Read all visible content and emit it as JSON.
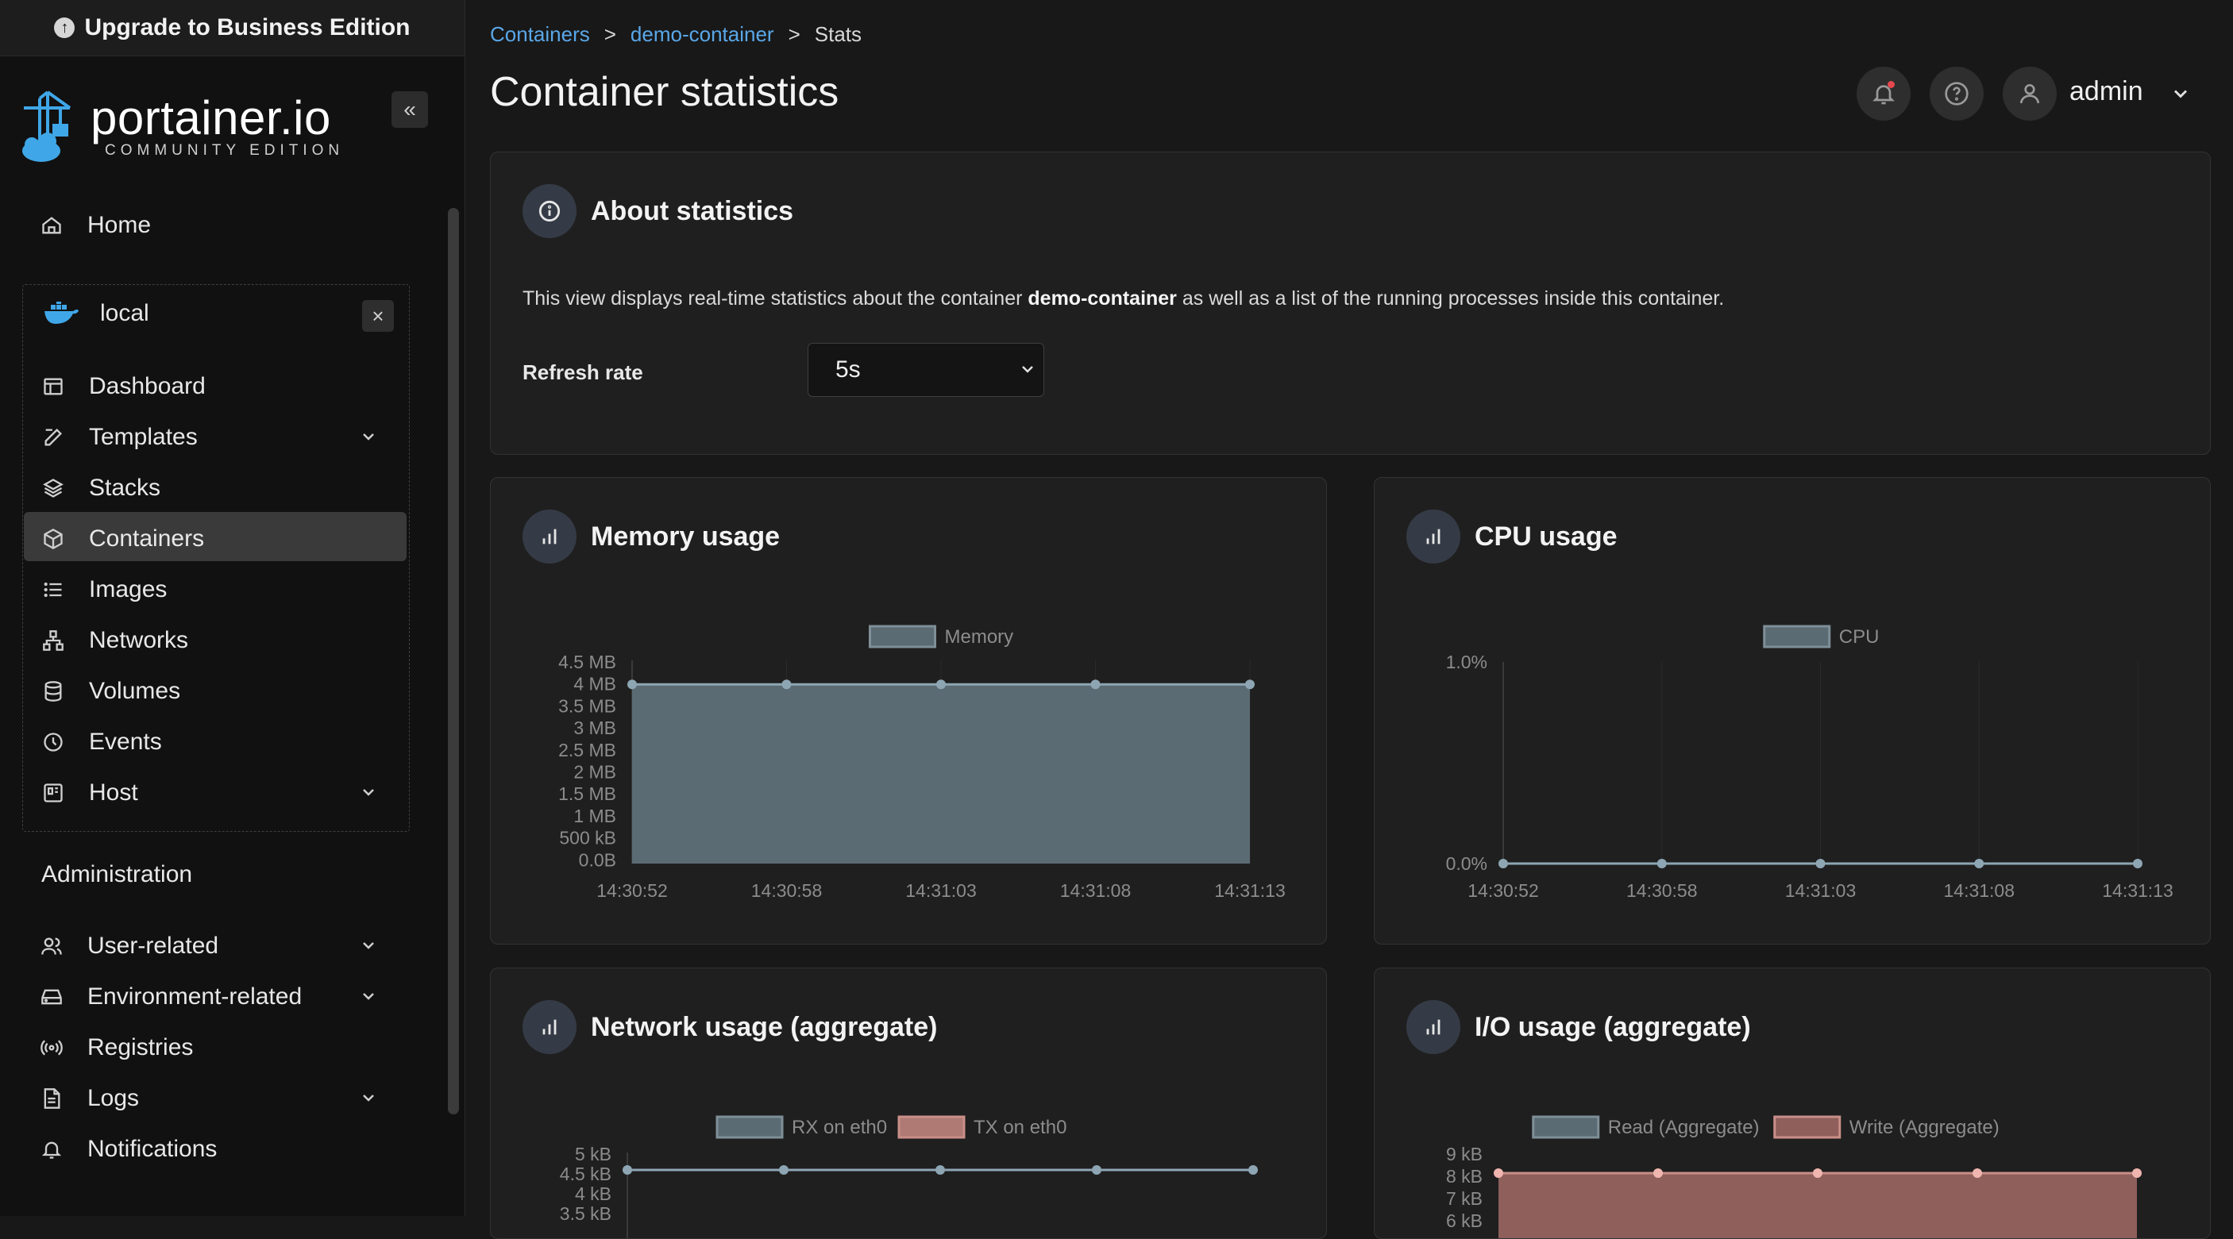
{
  "sidebar": {
    "upgrade_label": "Upgrade to Business Edition",
    "brand_name": "portainer.io",
    "brand_edition": "COMMUNITY EDITION",
    "collapse_icon": "«",
    "home": "Home",
    "environment": "local",
    "env_items": {
      "dashboard": "Dashboard",
      "templates": "Templates",
      "stacks": "Stacks",
      "containers": "Containers",
      "images": "Images",
      "networks": "Networks",
      "volumes": "Volumes",
      "events": "Events",
      "host": "Host"
    },
    "administration": "Administration",
    "admin_items": {
      "user_related": "User-related",
      "environment_related": "Environment-related",
      "registries": "Registries",
      "logs": "Logs",
      "notifications": "Notifications"
    }
  },
  "breadcrumb": {
    "containers": "Containers",
    "container": "demo-container",
    "current": "Stats",
    "sep": ">"
  },
  "header": {
    "title": "Container statistics",
    "user": "admin"
  },
  "about": {
    "title": "About statistics",
    "text_pre": "This view displays real-time statistics about the container ",
    "text_bold": "demo-container",
    "text_post": " as well as a list of the running processes inside this container.",
    "refresh_label": "Refresh rate",
    "refresh_value": "5s"
  },
  "colors": {
    "memory_fill": "#5b6b73",
    "line_blue": "#8ea6b4",
    "tx_red": "#c98f88",
    "io_write_fill": "#8e5f5b"
  },
  "chart_data": [
    {
      "id": "memory",
      "type": "area",
      "title": "Memory usage",
      "legend": [
        "Memory"
      ],
      "x": [
        "14:30:52",
        "14:30:58",
        "14:31:03",
        "14:31:08",
        "14:31:13"
      ],
      "y_ticks": [
        "4.5 MB",
        "4 MB",
        "3.5 MB",
        "3 MB",
        "2.5 MB",
        "2 MB",
        "1.5 MB",
        "1 MB",
        "500 kB",
        "0.0B"
      ],
      "series": [
        {
          "name": "Memory",
          "values_mb": [
            4,
            4,
            4,
            4,
            4
          ]
        }
      ],
      "ylim_mb": [
        0,
        4.5
      ]
    },
    {
      "id": "cpu",
      "type": "line",
      "title": "CPU usage",
      "legend": [
        "CPU"
      ],
      "x": [
        "14:30:52",
        "14:30:58",
        "14:31:03",
        "14:31:08",
        "14:31:13"
      ],
      "y_ticks": [
        "1.0%",
        "0.0%"
      ],
      "series": [
        {
          "name": "CPU",
          "values": [
            0,
            0,
            0,
            0,
            0
          ]
        }
      ],
      "ylim": [
        0,
        1
      ]
    },
    {
      "id": "network",
      "type": "line",
      "title": "Network usage (aggregate)",
      "legend": [
        "RX on eth0",
        "TX on eth0"
      ],
      "y_ticks": [
        "5 kB",
        "4.5 kB",
        "4 kB",
        "3.5 kB"
      ],
      "series": [
        {
          "name": "RX on eth0",
          "values_kb": [
            4.6,
            4.6,
            4.6,
            4.6,
            4.6
          ]
        },
        {
          "name": "TX on eth0",
          "values_kb": []
        }
      ]
    },
    {
      "id": "io",
      "type": "area",
      "title": "I/O usage (aggregate)",
      "legend": [
        "Read (Aggregate)",
        "Write (Aggregate)"
      ],
      "y_ticks": [
        "9 kB",
        "8 kB",
        "7 kB",
        "6 kB"
      ],
      "series": [
        {
          "name": "Read (Aggregate)",
          "values_kb": []
        },
        {
          "name": "Write (Aggregate)",
          "values_kb": [
            8,
            8,
            8,
            8,
            8
          ]
        }
      ]
    }
  ]
}
